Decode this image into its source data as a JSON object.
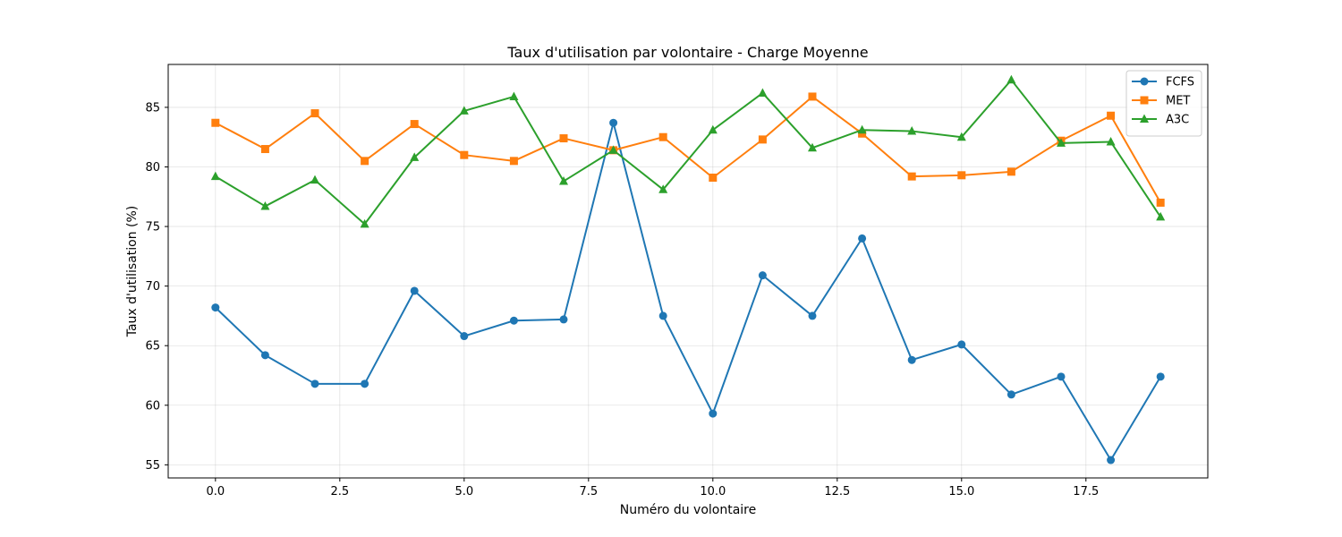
{
  "chart_data": {
    "type": "line",
    "title": "Taux d'utilisation par volontaire - Charge Moyenne",
    "xlabel": "Numéro du volontaire",
    "ylabel": "Taux d'utilisation (%)",
    "xlim": [
      -0.95,
      19.95
    ],
    "ylim": [
      53.9,
      88.6
    ],
    "x_ticks": [
      0.0,
      2.5,
      5.0,
      7.5,
      10.0,
      12.5,
      15.0,
      17.5
    ],
    "x_tick_labels": [
      "0.0",
      "2.5",
      "5.0",
      "7.5",
      "10.0",
      "12.5",
      "15.0",
      "17.5"
    ],
    "y_ticks": [
      55,
      60,
      65,
      70,
      75,
      80,
      85
    ],
    "y_tick_labels": [
      "55",
      "60",
      "65",
      "70",
      "75",
      "80",
      "85"
    ],
    "grid": true,
    "legend_position": "top-right",
    "x": [
      0,
      1,
      2,
      3,
      4,
      5,
      6,
      7,
      8,
      9,
      10,
      11,
      12,
      13,
      14,
      15,
      16,
      17,
      18,
      19
    ],
    "series": [
      {
        "name": "FCFS",
        "color": "#1f77b4",
        "marker": "circle",
        "values": [
          68.2,
          64.2,
          61.8,
          61.8,
          69.6,
          65.8,
          67.1,
          67.2,
          83.7,
          67.5,
          59.3,
          70.9,
          67.5,
          74.0,
          63.8,
          65.1,
          60.9,
          62.4,
          55.4,
          62.4
        ]
      },
      {
        "name": "MET",
        "color": "#ff7f0e",
        "marker": "square",
        "values": [
          83.7,
          81.5,
          84.5,
          80.5,
          83.6,
          81.0,
          80.5,
          82.4,
          81.4,
          82.5,
          79.1,
          82.3,
          85.9,
          82.8,
          79.2,
          79.3,
          79.6,
          82.2,
          84.3,
          77.0
        ]
      },
      {
        "name": "A3C",
        "color": "#2ca02c",
        "marker": "triangle",
        "values": [
          79.2,
          76.7,
          78.9,
          75.2,
          80.8,
          84.7,
          85.9,
          78.8,
          81.4,
          78.1,
          83.1,
          86.2,
          81.6,
          83.1,
          83.0,
          82.5,
          87.3,
          82.0,
          82.1,
          75.8
        ]
      }
    ]
  }
}
